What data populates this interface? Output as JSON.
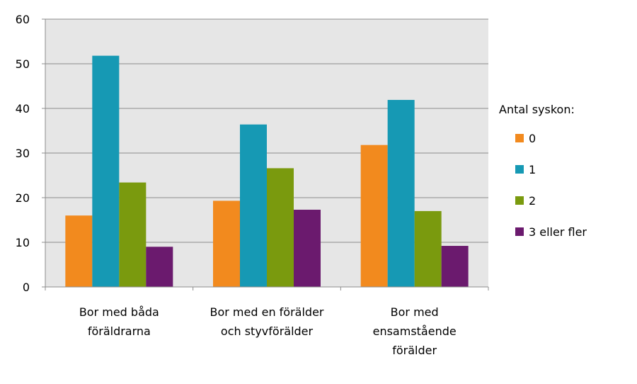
{
  "chart_data": {
    "type": "bar",
    "categories": [
      [
        "Bor med båda",
        "föräldrarna"
      ],
      [
        "Bor med en förälder",
        "och styvförälder"
      ],
      [
        "Bor med",
        "ensamstående",
        "förälder"
      ]
    ],
    "series": [
      {
        "name": "0",
        "color": "#f28a1e",
        "values": [
          16,
          19.3,
          31.8
        ]
      },
      {
        "name": "1",
        "color": "#1699b4",
        "values": [
          51.8,
          36.4,
          41.9
        ]
      },
      {
        "name": "2",
        "color": "#7a9a0e",
        "values": [
          23.4,
          26.6,
          17
        ]
      },
      {
        "name": "3 eller fler",
        "color": "#6b1a6e",
        "values": [
          9,
          17.3,
          9.2
        ]
      }
    ],
    "ylim": [
      0,
      60
    ],
    "yticks": [
      0,
      10,
      20,
      30,
      40,
      50,
      60
    ],
    "grid": true,
    "plot_background": "#e6e6e6",
    "legend_title": "Antal syskon:",
    "legend_position": "right"
  }
}
